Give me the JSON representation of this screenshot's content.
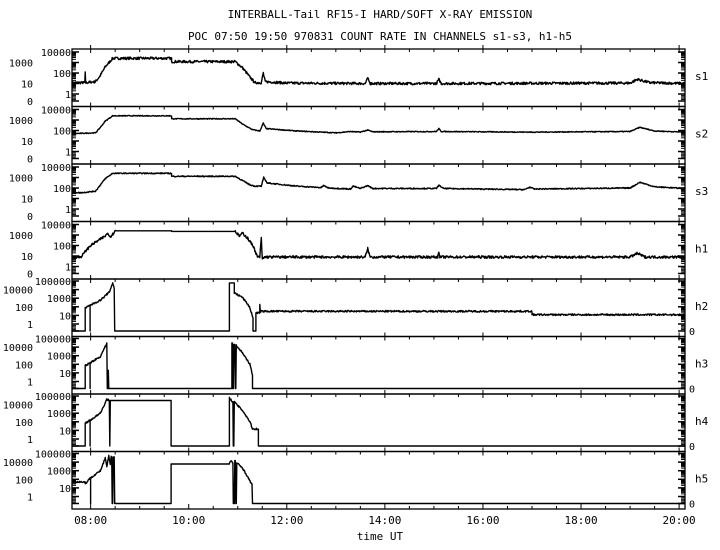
{
  "chart_data": {
    "type": "line",
    "title": "INTERBALL-Tail RF15-I HARD/SOFT X-RAY EMISSION",
    "subtitle": "POC 07:50 19:50 970831  COUNT RATE IN CHANNELS s1-s3, h1-h5",
    "xlabel": "time UT",
    "x_unit": "hours UT",
    "xlim": [
      7.62,
      20.12
    ],
    "x_ticks": [
      {
        "v": 8,
        "label": "08:00"
      },
      {
        "v": 10,
        "label": "10:00"
      },
      {
        "v": 12,
        "label": "12:00"
      },
      {
        "v": 14,
        "label": "14:00"
      },
      {
        "v": 16,
        "label": "16:00"
      },
      {
        "v": 18,
        "label": "18:00"
      },
      {
        "v": 20,
        "label": "20:00"
      }
    ],
    "y_scale": "log (0 plotted at bottom)",
    "y_ticks_soft": [
      "10000",
      "1000",
      "100",
      "10",
      "1",
      "0"
    ],
    "y_ticks_hard": [
      "100000",
      "10000",
      "1000",
      "100",
      "10",
      "1",
      "0"
    ],
    "colors": {
      "line": "#000000",
      "background": "#ffffff"
    },
    "series": [
      {
        "name": "s1",
        "ymax_decade": 4,
        "noise": 0.12,
        "points": [
          [
            7.62,
            12
          ],
          [
            7.88,
            12
          ],
          [
            7.89,
            100
          ],
          [
            7.9,
            12
          ],
          [
            8.1,
            15
          ],
          [
            8.2,
            60
          ],
          [
            8.3,
            400
          ],
          [
            8.45,
            2500
          ],
          [
            9.65,
            2500
          ],
          [
            9.65,
            1200
          ],
          [
            10.95,
            1200
          ],
          [
            11.1,
            300
          ],
          [
            11.25,
            40
          ],
          [
            11.35,
            12
          ],
          [
            11.48,
            12
          ],
          [
            11.52,
            100
          ],
          [
            11.56,
            15
          ],
          [
            12,
            11
          ],
          [
            13.6,
            10
          ],
          [
            13.65,
            30
          ],
          [
            13.7,
            10
          ],
          [
            15.05,
            10
          ],
          [
            15.1,
            25
          ],
          [
            15.15,
            10
          ],
          [
            19.0,
            11
          ],
          [
            19.15,
            25
          ],
          [
            19.4,
            12
          ],
          [
            20.12,
            10
          ]
        ]
      },
      {
        "name": "s2",
        "ymax_decade": 4,
        "noise": 0.04,
        "points": [
          [
            7.62,
            50
          ],
          [
            8.1,
            60
          ],
          [
            8.2,
            200
          ],
          [
            8.3,
            800
          ],
          [
            8.45,
            2500
          ],
          [
            9.65,
            2500
          ],
          [
            9.65,
            1300
          ],
          [
            10.95,
            1300
          ],
          [
            11.1,
            400
          ],
          [
            11.3,
            120
          ],
          [
            11.45,
            90
          ],
          [
            11.52,
            500
          ],
          [
            11.58,
            150
          ],
          [
            12.2,
            90
          ],
          [
            13.0,
            60
          ],
          [
            13.3,
            80
          ],
          [
            13.5,
            70
          ],
          [
            13.65,
            110
          ],
          [
            13.75,
            75
          ],
          [
            15.05,
            80
          ],
          [
            15.1,
            150
          ],
          [
            15.15,
            80
          ],
          [
            17,
            70
          ],
          [
            19.0,
            80
          ],
          [
            19.2,
            200
          ],
          [
            19.5,
            90
          ],
          [
            20.12,
            70
          ]
        ]
      },
      {
        "name": "s3",
        "ymax_decade": 4,
        "noise": 0.05,
        "points": [
          [
            7.62,
            40
          ],
          [
            7.8,
            35
          ],
          [
            8.1,
            50
          ],
          [
            8.2,
            200
          ],
          [
            8.3,
            800
          ],
          [
            8.45,
            2500
          ],
          [
            9.65,
            2500
          ],
          [
            9.65,
            1300
          ],
          [
            10.95,
            1300
          ],
          [
            11.1,
            500
          ],
          [
            11.25,
            200
          ],
          [
            11.35,
            150
          ],
          [
            11.48,
            150
          ],
          [
            11.53,
            1000
          ],
          [
            11.6,
            300
          ],
          [
            12.2,
            150
          ],
          [
            12.7,
            110
          ],
          [
            12.75,
            170
          ],
          [
            12.85,
            100
          ],
          [
            13.3,
            80
          ],
          [
            13.35,
            150
          ],
          [
            13.5,
            90
          ],
          [
            13.65,
            170
          ],
          [
            13.75,
            90
          ],
          [
            15.05,
            90
          ],
          [
            15.1,
            180
          ],
          [
            15.2,
            90
          ],
          [
            16.85,
            70
          ],
          [
            16.95,
            120
          ],
          [
            17.05,
            80
          ],
          [
            19.0,
            100
          ],
          [
            19.2,
            350
          ],
          [
            19.5,
            130
          ],
          [
            20.12,
            90
          ]
        ]
      },
      {
        "name": "h1",
        "ymax_decade": 4,
        "noise": 0.12,
        "points": [
          [
            7.62,
            8
          ],
          [
            7.8,
            8
          ],
          [
            7.9,
            30
          ],
          [
            8.0,
            100
          ],
          [
            8.3,
            800
          ],
          [
            8.35,
            1500
          ],
          [
            8.4,
            700
          ],
          [
            8.45,
            1200
          ],
          [
            8.5,
            2500
          ],
          [
            9.65,
            2500
          ],
          [
            9.65,
            2200
          ],
          [
            10.95,
            2200
          ],
          [
            11.03,
            800
          ],
          [
            11.1,
            1500
          ],
          [
            11.2,
            500
          ],
          [
            11.32,
            80
          ],
          [
            11.4,
            8
          ],
          [
            11.45,
            8
          ],
          [
            11.48,
            500
          ],
          [
            11.5,
            5
          ],
          [
            11.55,
            8
          ],
          [
            13.6,
            8
          ],
          [
            13.65,
            50
          ],
          [
            13.7,
            8
          ],
          [
            15.08,
            8
          ],
          [
            15.1,
            30
          ],
          [
            15.12,
            8
          ],
          [
            19.0,
            8
          ],
          [
            19.15,
            18
          ],
          [
            19.3,
            8
          ],
          [
            20.12,
            8
          ]
        ]
      },
      {
        "name": "h2",
        "ymax_decade": 5,
        "noise": 0.1,
        "points": [
          [
            7.62,
            0
          ],
          [
            7.89,
            0
          ],
          [
            7.89,
            70
          ],
          [
            7.99,
            150
          ],
          [
            7.99,
            0
          ],
          [
            7.99,
            150
          ],
          [
            8.2,
            600
          ],
          [
            8.38,
            5000
          ],
          [
            8.45,
            60000
          ],
          [
            8.48,
            15000
          ],
          [
            8.49,
            0
          ],
          [
            10.83,
            0
          ],
          [
            10.83,
            60000
          ],
          [
            10.93,
            60000
          ],
          [
            10.93,
            4000
          ],
          [
            11.1,
            1200
          ],
          [
            11.24,
            100
          ],
          [
            11.31,
            5
          ],
          [
            11.31,
            0
          ],
          [
            11.37,
            0
          ],
          [
            11.37,
            20
          ],
          [
            11.45,
            20
          ],
          [
            11.45,
            150
          ],
          [
            11.46,
            30
          ],
          [
            17.0,
            30
          ],
          [
            17.0,
            12
          ],
          [
            20.12,
            12
          ]
        ]
      },
      {
        "name": "h3",
        "ymax_decade": 5,
        "noise": 0.1,
        "points": [
          [
            7.62,
            0
          ],
          [
            7.89,
            0
          ],
          [
            7.89,
            70
          ],
          [
            7.99,
            150
          ],
          [
            7.99,
            0
          ],
          [
            7.99,
            150
          ],
          [
            8.2,
            800
          ],
          [
            8.33,
            30000
          ],
          [
            8.34,
            0
          ],
          [
            8.36,
            0
          ],
          [
            8.36,
            20
          ],
          [
            8.37,
            0
          ],
          [
            10.88,
            0
          ],
          [
            10.88,
            30000
          ],
          [
            10.9,
            0
          ],
          [
            10.92,
            20000
          ],
          [
            10.95,
            0
          ],
          [
            10.97,
            15000
          ],
          [
            11.1,
            2000
          ],
          [
            11.25,
            100
          ],
          [
            11.3,
            5
          ],
          [
            11.3,
            0
          ],
          [
            20.12,
            0
          ]
        ]
      },
      {
        "name": "h4",
        "ymax_decade": 5,
        "noise": 0.1,
        "points": [
          [
            7.62,
            0
          ],
          [
            7.89,
            0
          ],
          [
            7.89,
            70
          ],
          [
            7.99,
            150
          ],
          [
            7.99,
            0
          ],
          [
            7.99,
            150
          ],
          [
            8.2,
            1000
          ],
          [
            8.33,
            40000
          ],
          [
            8.38,
            30000
          ],
          [
            8.39,
            0
          ],
          [
            8.4,
            30000
          ],
          [
            9.64,
            30000
          ],
          [
            9.64,
            0
          ],
          [
            10.83,
            0
          ],
          [
            10.83,
            60000
          ],
          [
            10.9,
            20000
          ],
          [
            10.91,
            0
          ],
          [
            10.93,
            20000
          ],
          [
            11.1,
            2000
          ],
          [
            11.25,
            100
          ],
          [
            11.3,
            15
          ],
          [
            11.42,
            15
          ],
          [
            11.42,
            0
          ],
          [
            20.12,
            0
          ]
        ]
      },
      {
        "name": "h5",
        "ymax_decade": 5,
        "noise": 0.1,
        "points": [
          [
            7.62,
            50
          ],
          [
            7.89,
            50
          ],
          [
            7.89,
            30
          ],
          [
            8.0,
            150
          ],
          [
            8.0,
            0
          ],
          [
            8.0,
            150
          ],
          [
            8.2,
            1000
          ],
          [
            8.3,
            30000
          ],
          [
            8.33,
            3000
          ],
          [
            8.37,
            50000
          ],
          [
            8.4,
            5000
          ],
          [
            8.42,
            40000
          ],
          [
            8.44,
            0
          ],
          [
            8.46,
            40000
          ],
          [
            8.49,
            0
          ],
          [
            9.64,
            0
          ],
          [
            9.64,
            6000
          ],
          [
            10.83,
            6000
          ],
          [
            10.86,
            15000
          ],
          [
            10.9,
            8000
          ],
          [
            10.91,
            0
          ],
          [
            10.94,
            15000
          ],
          [
            10.96,
            0
          ],
          [
            10.98,
            8000
          ],
          [
            11.1,
            2000
          ],
          [
            11.28,
            30
          ],
          [
            11.3,
            0
          ],
          [
            20.12,
            0
          ]
        ]
      }
    ]
  }
}
